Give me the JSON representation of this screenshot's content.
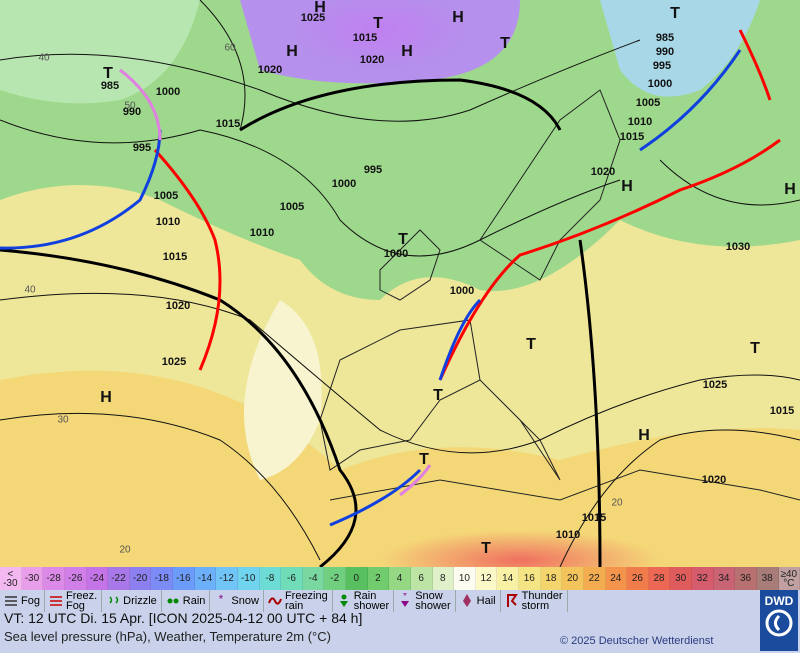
{
  "map": {
    "isobar_labels": [
      1025,
      1015,
      1020,
      1020,
      985,
      990,
      1000,
      995,
      1015,
      1005,
      1010,
      1000,
      1005,
      1010,
      1015,
      1020,
      1025,
      1000,
      1000,
      995,
      985,
      990,
      995,
      1000,
      1005,
      1010,
      1015,
      1020,
      1030,
      1025,
      1020,
      1015,
      1015,
      1010
    ],
    "temperature_labels": [
      30,
      40,
      20,
      20,
      60,
      40,
      50
    ],
    "centers": [
      "H",
      "T",
      "H",
      "H",
      "H",
      "T",
      "T",
      "H",
      "T",
      "H",
      "H",
      "T",
      "T",
      "T",
      "T",
      "H",
      "T",
      "T"
    ]
  },
  "scale": {
    "labels": [
      "<\n-30",
      -30,
      -28,
      -26,
      -24,
      -22,
      -20,
      -18,
      -16,
      -14,
      -12,
      -10,
      -8,
      -6,
      -4,
      -2,
      0,
      2,
      4,
      6,
      8,
      10,
      12,
      14,
      16,
      18,
      20,
      22,
      24,
      26,
      28,
      30,
      32,
      34,
      36,
      38,
      "≥40\n°C"
    ],
    "colors": [
      "#f4b8f0",
      "#e89ee8",
      "#dc8ae8",
      "#d07ee8",
      "#c474e6",
      "#a878e8",
      "#8c80f0",
      "#7c8cf6",
      "#6c9cfa",
      "#6cb0fa",
      "#70c4f6",
      "#70d4ee",
      "#6cdcd4",
      "#70dcb8",
      "#78d8a0",
      "#70d080",
      "#58c060",
      "#70cc6c",
      "#94d884",
      "#bce4a4",
      "#e0f0c8",
      "#fcfcf0",
      "#fcf8c8",
      "#f8f0a4",
      "#f4e484",
      "#f4d46c",
      "#f4c45c",
      "#f4ac50",
      "#f4944c",
      "#f07c4c",
      "#ec6854",
      "#e05c5c",
      "#d45c6c",
      "#c86474",
      "#b87070",
      "#a87c78",
      "#c0a0a0"
    ]
  },
  "legend": [
    "Fog",
    "Freez.\nFog",
    "Drizzle",
    "Rain",
    "Snow",
    "Freezing\nrain",
    "Rain\nshower",
    "Snow\nshower",
    "Hail",
    "Thunder\nstorm"
  ],
  "footer": {
    "valid_time": "VT: 12 UTC Di.  15 Apr. [ICON 2025-04-12  00 UTC + 84 h]",
    "description": "Sea level pressure (hPa), Weather, Temperature 2m (°C)",
    "copyright": "© 2025 Deutscher Wetterdienst",
    "logo": "DWD"
  }
}
